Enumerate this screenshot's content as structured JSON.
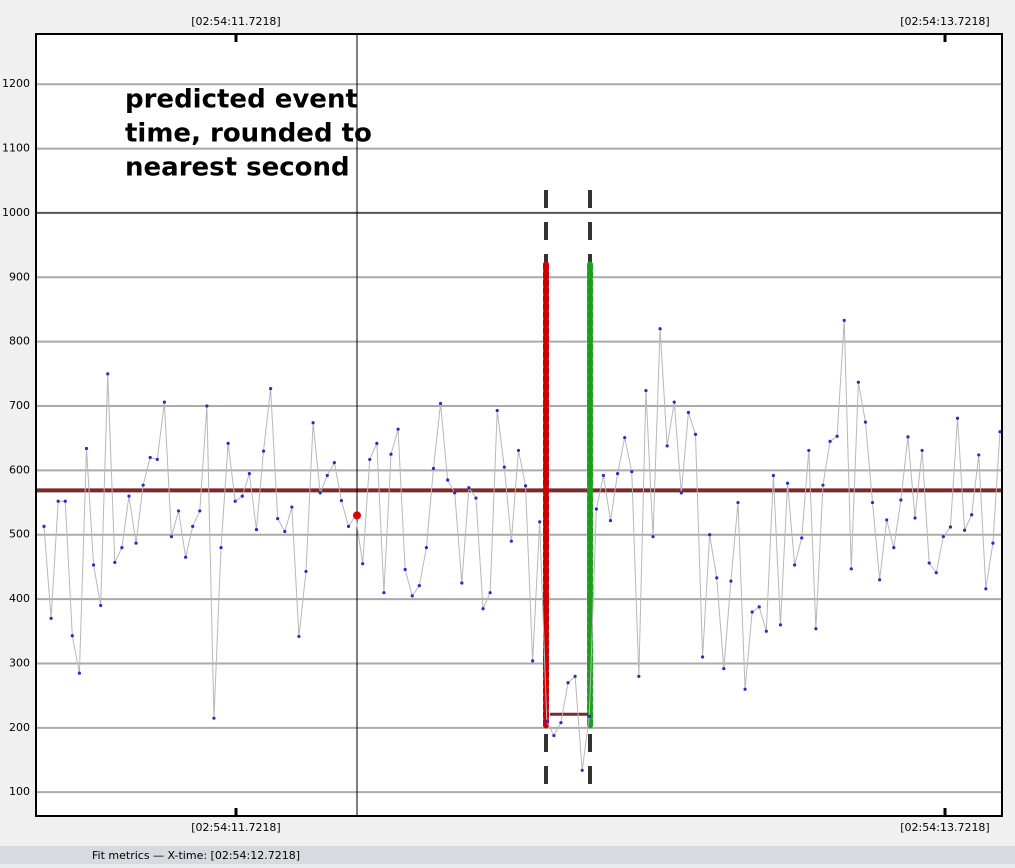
{
  "chart_data": {
    "type": "line",
    "top_axis_labels": [
      "[02:54:11.7218]",
      "[02:54:13.7218]"
    ],
    "bottom_axis_labels": [
      "[02:54:11.7218]",
      "[02:54:13.7218]"
    ],
    "annotation": [
      "predicted event",
      "time, rounded to",
      "nearest second"
    ],
    "status_text": "Fit metrics — X-time: [02:54:12.7218]",
    "ylim": [
      63,
      1278
    ],
    "yticks": [
      100,
      200,
      300,
      400,
      500,
      600,
      700,
      800,
      900,
      1000,
      1100,
      1200
    ],
    "grid": true,
    "series": [
      {
        "color": "#2a2ad0",
        "values": [
          513,
          370,
          552,
          552,
          343,
          285,
          634,
          453,
          390,
          750,
          457,
          480,
          560,
          487,
          577,
          620,
          617,
          706,
          497,
          537,
          465,
          513,
          537,
          700,
          215,
          480,
          642,
          552,
          560,
          595,
          508,
          630,
          727,
          525,
          505,
          543,
          342,
          443,
          674,
          565,
          592,
          612,
          553,
          513,
          530,
          455,
          617,
          642,
          410,
          625,
          664,
          446,
          405,
          421,
          480,
          603,
          704,
          585,
          565,
          425,
          573,
          557,
          385,
          410,
          693,
          605,
          490,
          631,
          576,
          304,
          520,
          210,
          188,
          208,
          270,
          280,
          134,
          218,
          540,
          592,
          522,
          595,
          651,
          598,
          280,
          724,
          497,
          820,
          638,
          706,
          565,
          690,
          656,
          310,
          500,
          433,
          292,
          428,
          550,
          260,
          380,
          388,
          350,
          592,
          360,
          580,
          453,
          495,
          631,
          354,
          577,
          645,
          653,
          833,
          447,
          737,
          675,
          550,
          430,
          523,
          480,
          554,
          652,
          526,
          631,
          456,
          441,
          497,
          512,
          681,
          507,
          531,
          624,
          416,
          487,
          660
        ]
      }
    ],
    "highlight": {
      "value": 530,
      "color": "#e00000"
    },
    "mean_line": 569,
    "window_line": 221,
    "window_lines": {
      "top": 920,
      "bottom": 200,
      "colors": [
        "#cc0000",
        "#1aa01a"
      ]
    }
  }
}
